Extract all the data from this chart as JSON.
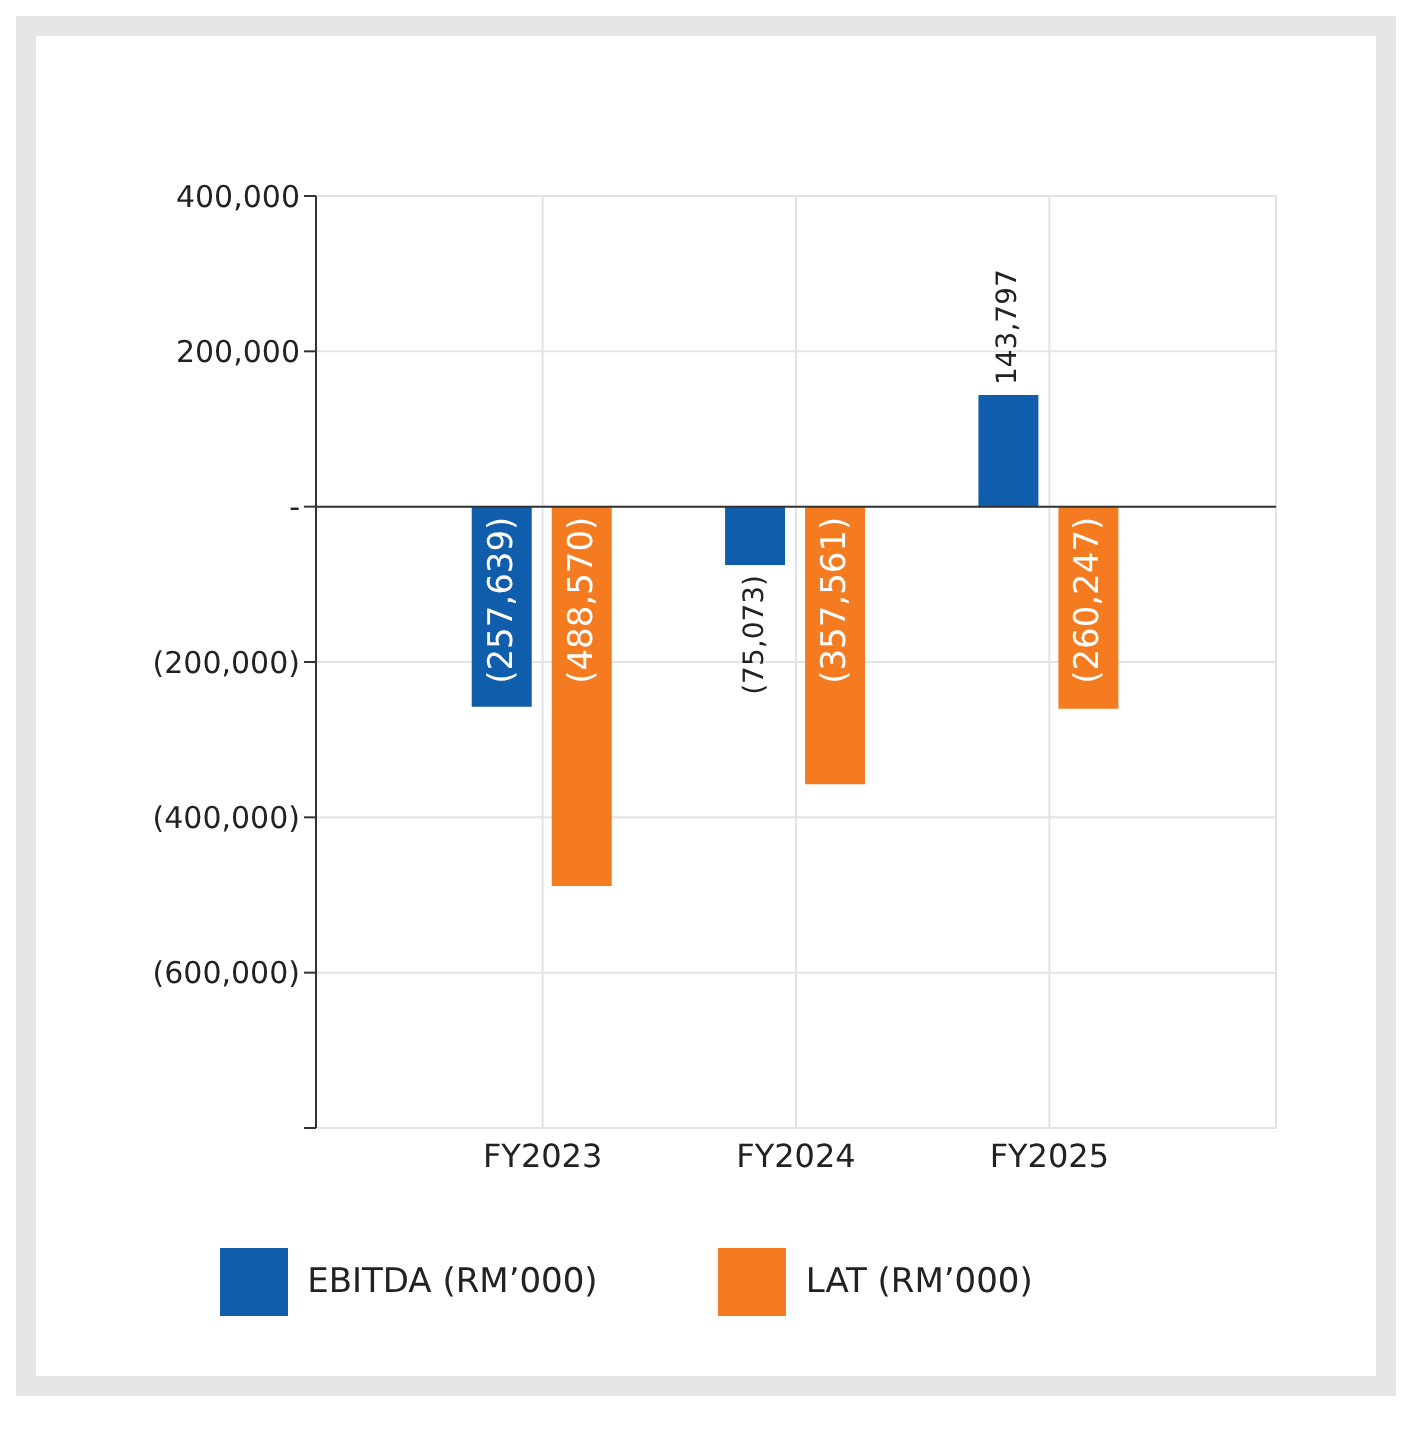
{
  "chart_data": {
    "type": "bar",
    "categories": [
      "FY2023",
      "FY2024",
      "FY2025"
    ],
    "series": [
      {
        "name": "EBITDA (RM’000)",
        "color": "#0f5dab",
        "values": [
          -257639,
          -75073,
          143797
        ],
        "value_labels": [
          "(257,639)",
          "(75,073)",
          "143,797"
        ]
      },
      {
        "name": "LAT (RM’000)",
        "color": "#f47b20",
        "values": [
          -488570,
          -357561,
          -260247
        ],
        "value_labels": [
          "(488,570)",
          "(357,561)",
          "(260,247)"
        ]
      }
    ],
    "ylim": [
      -800000,
      400000
    ],
    "yticks": [
      {
        "value": 400000,
        "label": "400,000"
      },
      {
        "value": 200000,
        "label": "200,000"
      },
      {
        "value": 0,
        "label": "-"
      },
      {
        "value": -200000,
        "label": "(200,000)"
      },
      {
        "value": -400000,
        "label": "(400,000)"
      },
      {
        "value": -600000,
        "label": "(600,000)"
      },
      {
        "value": -800000,
        "label": null
      }
    ],
    "grid": true,
    "legend": "bottom"
  }
}
